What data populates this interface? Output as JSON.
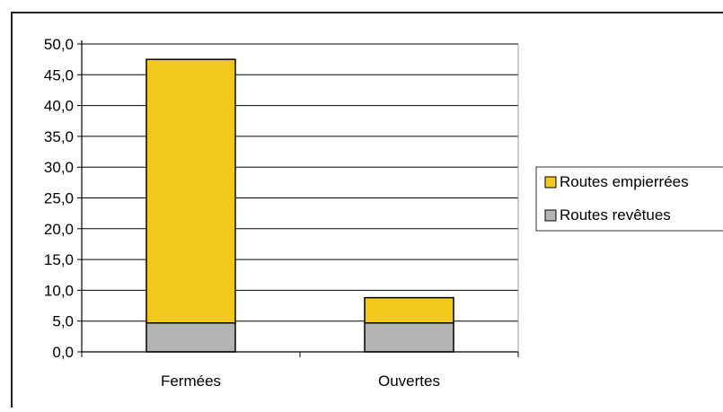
{
  "chart_data": {
    "type": "bar",
    "stacked": true,
    "categories": [
      "Fermées",
      "Ouvertes"
    ],
    "series": [
      {
        "name": "Routes revêtues",
        "values": [
          4.7,
          4.7
        ],
        "color": "#b4b4b4"
      },
      {
        "name": "Routes empierrées",
        "values": [
          42.8,
          4.1
        ],
        "color": "#f2c91b"
      }
    ],
    "yticks": [
      "0,0",
      "5,0",
      "10,0",
      "15,0",
      "20,0",
      "25,0",
      "30,0",
      "35,0",
      "40,0",
      "45,0",
      "50,0"
    ],
    "ylim": [
      0,
      50
    ],
    "grid": true,
    "legend": {
      "position": "right",
      "entries": [
        "Routes empierrées",
        "Routes revêtues"
      ]
    },
    "title": "",
    "xlabel": "",
    "ylabel": ""
  }
}
